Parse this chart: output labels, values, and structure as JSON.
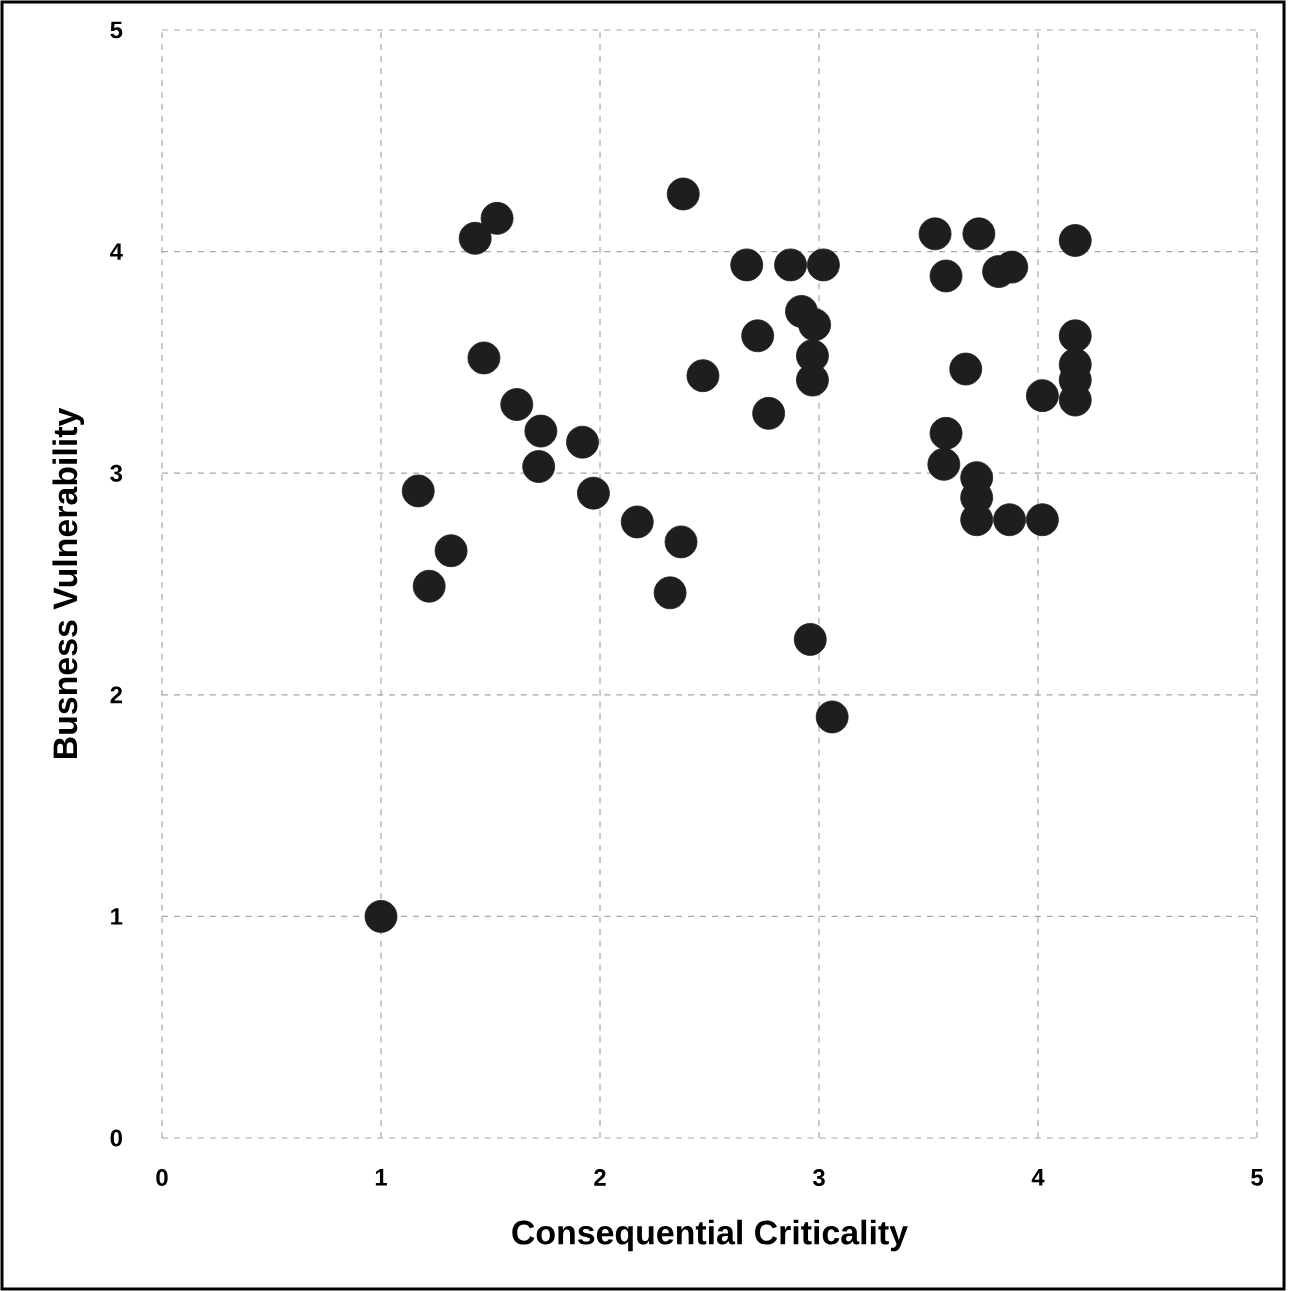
{
  "chart_data": {
    "type": "scatter",
    "xlabel": "Consequential Criticality",
    "ylabel": "Busness Vulnerability",
    "x": [
      1.0,
      1.17,
      1.22,
      1.32,
      1.43,
      1.53,
      1.47,
      1.62,
      1.73,
      1.72,
      1.92,
      1.97,
      2.17,
      2.37,
      2.32,
      2.38,
      2.47,
      2.67,
      2.72,
      2.77,
      2.87,
      2.92,
      2.98,
      3.02,
      2.97,
      2.97,
      2.96,
      3.06,
      3.53,
      3.58,
      3.73,
      3.67,
      3.58,
      3.57,
      3.72,
      3.72,
      3.72,
      3.82,
      3.88,
      3.87,
      4.02,
      4.02,
      4.17,
      4.17,
      4.17,
      4.17,
      4.17
    ],
    "values": [
      1.0,
      2.92,
      2.49,
      2.65,
      4.06,
      4.15,
      3.52,
      3.31,
      3.19,
      3.03,
      3.14,
      2.91,
      2.78,
      2.69,
      2.46,
      4.26,
      3.44,
      3.94,
      3.62,
      3.27,
      3.94,
      3.73,
      3.67,
      3.94,
      3.53,
      3.42,
      2.25,
      1.9,
      4.08,
      3.89,
      4.08,
      3.47,
      3.18,
      3.04,
      2.98,
      2.89,
      2.79,
      3.91,
      3.93,
      2.79,
      2.79,
      3.35,
      4.05,
      3.62,
      3.49,
      3.42,
      3.33
    ],
    "color": "#1e1e1e",
    "grid": true,
    "xlim": [
      0,
      5
    ],
    "ylim": [
      0,
      5
    ],
    "xticks": [
      0,
      1,
      2,
      3,
      4,
      5
    ],
    "yticks": [
      0,
      1,
      2,
      3,
      4,
      5
    ]
  }
}
